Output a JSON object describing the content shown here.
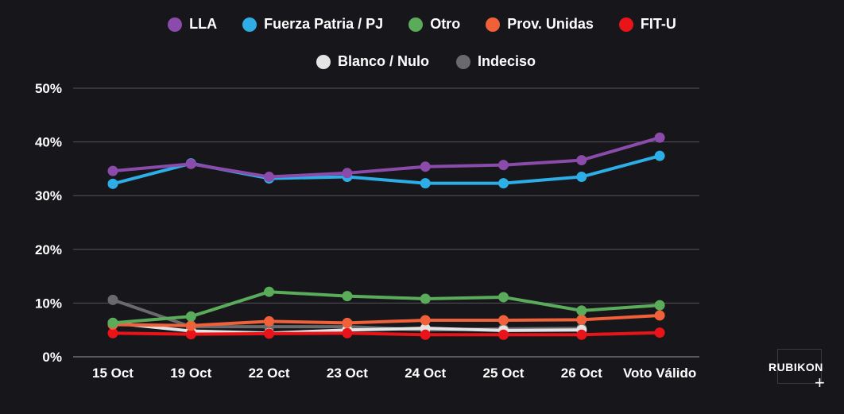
{
  "chart_data": {
    "type": "line",
    "categories": [
      "15 Oct",
      "19 Oct",
      "22 Oct",
      "23 Oct",
      "24 Oct",
      "25 Oct",
      "26 Oct",
      "Voto Válido"
    ],
    "y_ticks": [
      "0%",
      "10%",
      "20%",
      "30%",
      "40%",
      "50%"
    ],
    "ylim": [
      0,
      50
    ],
    "grid": true,
    "legend_placement": "top",
    "series": [
      {
        "name": "LLA",
        "color": "#8a4bab",
        "values": [
          34.6,
          35.9,
          33.5,
          34.2,
          35.4,
          35.7,
          36.6,
          40.8
        ]
      },
      {
        "name": "Fuerza Patria / PJ",
        "color": "#2eaee6",
        "values": [
          32.2,
          36.0,
          33.2,
          33.5,
          32.3,
          32.3,
          33.5,
          37.4
        ]
      },
      {
        "name": "Otro",
        "color": "#5aac5a",
        "values": [
          6.3,
          7.5,
          12.1,
          11.3,
          10.8,
          11.1,
          8.6,
          9.6
        ]
      },
      {
        "name": "Prov. Unidas",
        "color": "#f0613a",
        "values": [
          6.0,
          5.8,
          6.6,
          6.3,
          6.8,
          6.8,
          6.9,
          7.7
        ]
      },
      {
        "name": "FIT-U",
        "color": "#e8141a",
        "values": [
          4.4,
          4.2,
          4.3,
          4.4,
          4.1,
          4.1,
          4.1,
          4.5
        ]
      },
      {
        "name": "Blanco / Nulo",
        "color": "#e4e4e4",
        "values": [
          6.3,
          4.8,
          4.4,
          5.0,
          5.3,
          4.9,
          5.0,
          null
        ]
      },
      {
        "name": "Indeciso",
        "color": "#6a6a6c",
        "values": [
          10.6,
          5.6,
          5.6,
          5.6,
          5.0,
          5.2,
          5.3,
          null
        ]
      }
    ]
  },
  "brand": {
    "name": "RUBIKON",
    "mark": "+"
  }
}
